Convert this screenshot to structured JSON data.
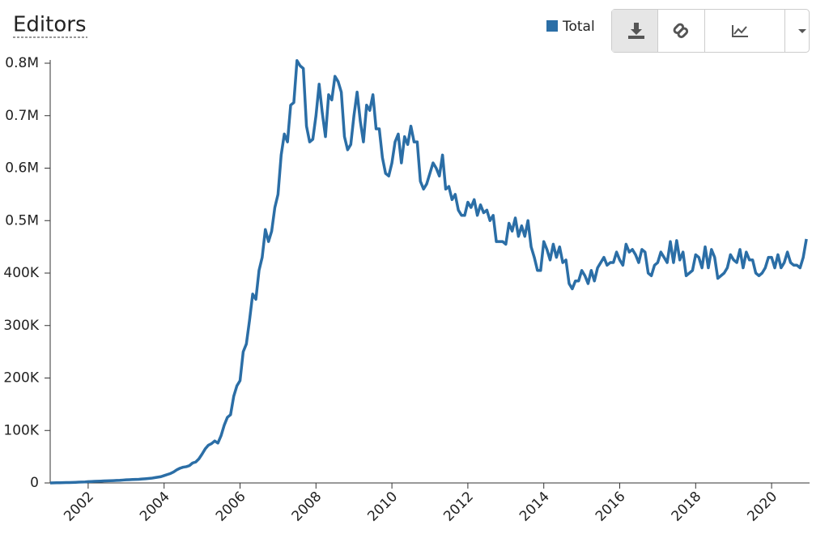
{
  "chart_data": {
    "type": "line",
    "title": "Editors",
    "x": [
      "2001-01",
      "2001-02",
      "2001-03",
      "2001-04",
      "2001-05",
      "2001-06",
      "2001-07",
      "2001-08",
      "2001-09",
      "2001-10",
      "2001-11",
      "2001-12",
      "2002-01",
      "2002-02",
      "2002-03",
      "2002-04",
      "2002-05",
      "2002-06",
      "2002-07",
      "2002-08",
      "2002-09",
      "2002-10",
      "2002-11",
      "2002-12",
      "2003-01",
      "2003-02",
      "2003-03",
      "2003-04",
      "2003-05",
      "2003-06",
      "2003-07",
      "2003-08",
      "2003-09",
      "2003-10",
      "2003-11",
      "2003-12",
      "2004-01",
      "2004-02",
      "2004-03",
      "2004-04",
      "2004-05",
      "2004-06",
      "2004-07",
      "2004-08",
      "2004-09",
      "2004-10",
      "2004-11",
      "2004-12",
      "2005-01",
      "2005-02",
      "2005-03",
      "2005-04",
      "2005-05",
      "2005-06",
      "2005-07",
      "2005-08",
      "2005-09",
      "2005-10",
      "2005-11",
      "2005-12",
      "2006-01",
      "2006-02",
      "2006-03",
      "2006-04",
      "2006-05",
      "2006-06",
      "2006-07",
      "2006-08",
      "2006-09",
      "2006-10",
      "2006-11",
      "2006-12",
      "2007-01",
      "2007-02",
      "2007-03",
      "2007-04",
      "2007-05",
      "2007-06",
      "2007-07",
      "2007-08",
      "2007-09",
      "2007-10",
      "2007-11",
      "2007-12",
      "2008-01",
      "2008-02",
      "2008-03",
      "2008-04",
      "2008-05",
      "2008-06",
      "2008-07",
      "2008-08",
      "2008-09",
      "2008-10",
      "2008-11",
      "2008-12",
      "2009-01",
      "2009-02",
      "2009-03",
      "2009-04",
      "2009-05",
      "2009-06",
      "2009-07",
      "2009-08",
      "2009-09",
      "2009-10",
      "2009-11",
      "2009-12",
      "2010-01",
      "2010-02",
      "2010-03",
      "2010-04",
      "2010-05",
      "2010-06",
      "2010-07",
      "2010-08",
      "2010-09",
      "2010-10",
      "2010-11",
      "2010-12",
      "2011-01",
      "2011-02",
      "2011-03",
      "2011-04",
      "2011-05",
      "2011-06",
      "2011-07",
      "2011-08",
      "2011-09",
      "2011-10",
      "2011-11",
      "2011-12",
      "2012-01",
      "2012-02",
      "2012-03",
      "2012-04",
      "2012-05",
      "2012-06",
      "2012-07",
      "2012-08",
      "2012-09",
      "2012-10",
      "2012-11",
      "2012-12",
      "2013-01",
      "2013-02",
      "2013-03",
      "2013-04",
      "2013-05",
      "2013-06",
      "2013-07",
      "2013-08",
      "2013-09",
      "2013-10",
      "2013-11",
      "2013-12",
      "2014-01",
      "2014-02",
      "2014-03",
      "2014-04",
      "2014-05",
      "2014-06",
      "2014-07",
      "2014-08",
      "2014-09",
      "2014-10",
      "2014-11",
      "2014-12",
      "2015-01",
      "2015-02",
      "2015-03",
      "2015-04",
      "2015-05",
      "2015-06",
      "2015-07",
      "2015-08",
      "2015-09",
      "2015-10",
      "2015-11",
      "2015-12",
      "2016-01",
      "2016-02",
      "2016-03",
      "2016-04",
      "2016-05",
      "2016-06",
      "2016-07",
      "2016-08",
      "2016-09",
      "2016-10",
      "2016-11",
      "2016-12",
      "2017-01",
      "2017-02",
      "2017-03",
      "2017-04",
      "2017-05",
      "2017-06",
      "2017-07",
      "2017-08",
      "2017-09",
      "2017-10",
      "2017-11",
      "2017-12",
      "2018-01",
      "2018-02",
      "2018-03",
      "2018-04",
      "2018-05",
      "2018-06",
      "2018-07",
      "2018-08",
      "2018-09",
      "2018-10",
      "2018-11",
      "2018-12",
      "2019-01",
      "2019-02",
      "2019-03",
      "2019-04",
      "2019-05",
      "2019-06",
      "2019-07",
      "2019-08",
      "2019-09",
      "2019-10",
      "2019-11",
      "2019-12",
      "2020-01",
      "2020-02",
      "2020-03",
      "2020-04",
      "2020-05",
      "2020-06",
      "2020-07",
      "2020-08",
      "2020-09",
      "2020-10",
      "2020-11",
      "2020-12"
    ],
    "series": [
      {
        "name": "Total",
        "color": "#2b6ea6",
        "values": [
          100,
          200,
          300,
          400,
          500,
          700,
          800,
          1000,
          1200,
          1500,
          1800,
          2000,
          2500,
          2800,
          3000,
          3200,
          3500,
          3800,
          4000,
          4200,
          4500,
          4800,
          5000,
          5500,
          6000,
          6200,
          6500,
          6800,
          7000,
          7500,
          8000,
          8500,
          9000,
          10000,
          11000,
          12000,
          14000,
          16000,
          18000,
          21000,
          25000,
          28000,
          30000,
          31000,
          33000,
          38000,
          40000,
          46000,
          55000,
          65000,
          72000,
          75000,
          80000,
          76000,
          90000,
          110000,
          125000,
          130000,
          165000,
          185000,
          195000,
          250000,
          265000,
          310000,
          360000,
          350000,
          405000,
          430000,
          483000,
          460000,
          480000,
          525000,
          550000,
          625000,
          665000,
          650000,
          720000,
          725000,
          805000,
          795000,
          790000,
          680000,
          650000,
          655000,
          700000,
          760000,
          705000,
          660000,
          740000,
          730000,
          775000,
          765000,
          745000,
          660000,
          635000,
          645000,
          700000,
          745000,
          690000,
          650000,
          720000,
          710000,
          740000,
          675000,
          675000,
          620000,
          590000,
          585000,
          610000,
          650000,
          665000,
          610000,
          660000,
          645000,
          680000,
          650000,
          650000,
          575000,
          560000,
          570000,
          590000,
          610000,
          600000,
          585000,
          625000,
          560000,
          565000,
          540000,
          550000,
          520000,
          510000,
          510000,
          535000,
          525000,
          540000,
          510000,
          530000,
          515000,
          520000,
          500000,
          510000,
          460000,
          460000,
          460000,
          455000,
          495000,
          480000,
          505000,
          470000,
          490000,
          470000,
          500000,
          450000,
          430000,
          405000,
          405000,
          460000,
          445000,
          425000,
          455000,
          430000,
          450000,
          420000,
          425000,
          380000,
          370000,
          385000,
          385000,
          405000,
          395000,
          380000,
          405000,
          385000,
          410000,
          420000,
          430000,
          415000,
          420000,
          420000,
          440000,
          425000,
          415000,
          455000,
          440000,
          445000,
          435000,
          420000,
          445000,
          440000,
          400000,
          395000,
          415000,
          420000,
          440000,
          430000,
          420000,
          460000,
          420000,
          462000,
          425000,
          440000,
          395000,
          400000,
          405000,
          435000,
          430000,
          410000,
          450000,
          410000,
          445000,
          430000,
          390000,
          395000,
          400000,
          410000,
          435000,
          425000,
          420000,
          445000,
          410000,
          440000,
          425000,
          425000,
          400000,
          395000,
          400000,
          410000,
          430000,
          430000,
          410000,
          435000,
          410000,
          420000,
          440000,
          420000,
          415000,
          415000,
          410000,
          430000,
          465000
        ]
      }
    ],
    "xlim": [
      "2001-01",
      "2021-01"
    ],
    "xticks": [
      "2002",
      "2004",
      "2006",
      "2008",
      "2010",
      "2012",
      "2014",
      "2016",
      "2018",
      "2020"
    ],
    "ylim": [
      0,
      800000
    ],
    "yticks": [
      0,
      {
        "value": 100000,
        "label": "100K"
      },
      {
        "value": 200000,
        "label": "200K"
      },
      {
        "value": 300000,
        "label": "300K"
      },
      {
        "value": 400000,
        "label": "400K"
      },
      {
        "value": 500000,
        "label": "0.5M"
      },
      {
        "value": 600000,
        "label": "0.6M"
      },
      {
        "value": 700000,
        "label": "0.7M"
      },
      {
        "value": 800000,
        "label": "0.8M"
      }
    ],
    "legend": "top-right"
  }
}
